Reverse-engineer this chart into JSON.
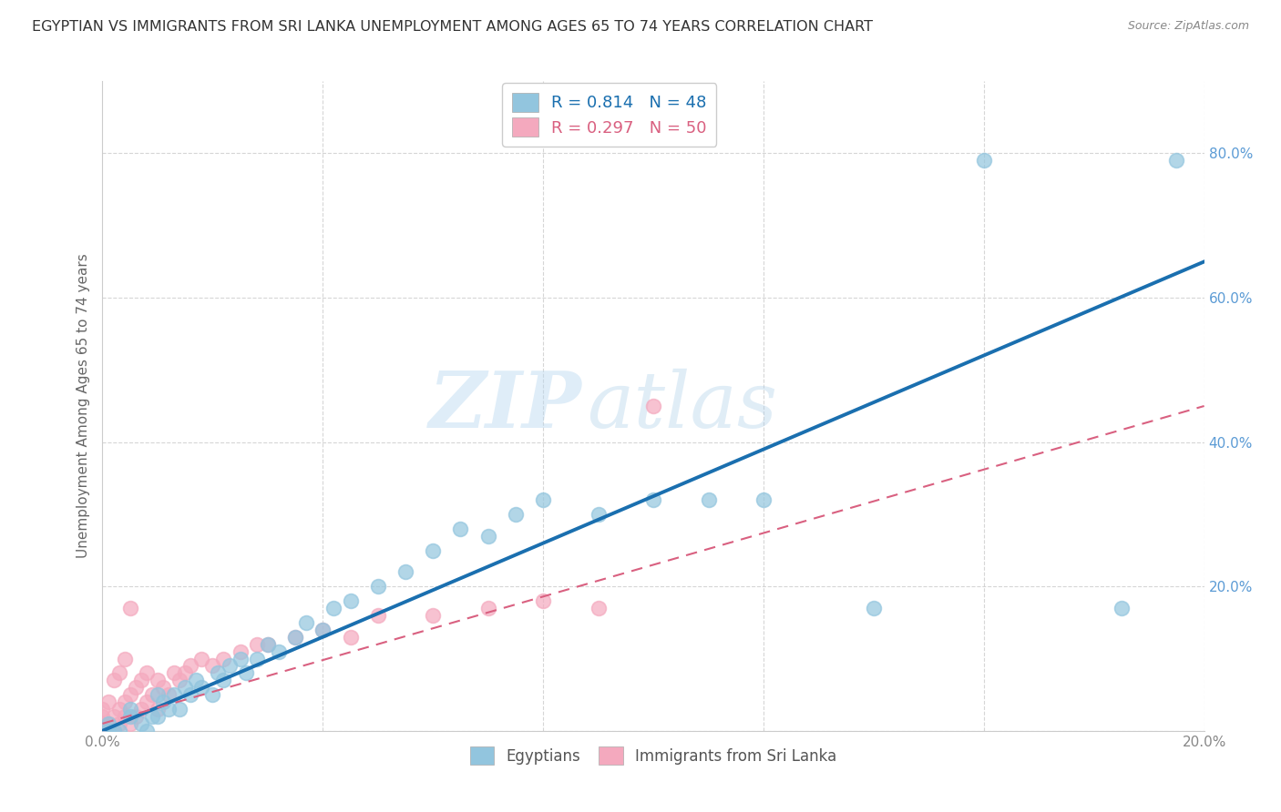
{
  "title": "EGYPTIAN VS IMMIGRANTS FROM SRI LANKA UNEMPLOYMENT AMONG AGES 65 TO 74 YEARS CORRELATION CHART",
  "source": "Source: ZipAtlas.com",
  "ylabel": "Unemployment Among Ages 65 to 74 years",
  "xlim": [
    0.0,
    0.2
  ],
  "ylim": [
    0.0,
    0.9
  ],
  "x_ticks": [
    0.0,
    0.04,
    0.08,
    0.12,
    0.16,
    0.2
  ],
  "y_ticks_right": [
    0.0,
    0.2,
    0.4,
    0.6,
    0.8
  ],
  "y_tick_labels_right": [
    "",
    "20.0%",
    "40.0%",
    "60.0%",
    "80.0%"
  ],
  "egyptian_color": "#92c5de",
  "srilanka_color": "#f4a9be",
  "egyptian_line_color": "#1a6faf",
  "srilanka_line_color": "#d96080",
  "R_egyptian": 0.814,
  "N_egyptian": 48,
  "R_srilanka": 0.297,
  "N_srilanka": 50,
  "legend_label_1": "Egyptians",
  "legend_label_2": "Immigrants from Sri Lanka",
  "watermark_zip": "ZIP",
  "watermark_atlas": "atlas",
  "background_color": "#ffffff",
  "grid_color": "#cccccc",
  "egyptian_x": [
    0.001,
    0.001,
    0.002,
    0.003,
    0.005,
    0.005,
    0.007,
    0.008,
    0.009,
    0.01,
    0.01,
    0.011,
    0.012,
    0.013,
    0.014,
    0.015,
    0.016,
    0.017,
    0.018,
    0.02,
    0.021,
    0.022,
    0.023,
    0.025,
    0.026,
    0.028,
    0.03,
    0.032,
    0.035,
    0.037,
    0.04,
    0.042,
    0.045,
    0.05,
    0.055,
    0.06,
    0.065,
    0.07,
    0.075,
    0.08,
    0.09,
    0.1,
    0.11,
    0.12,
    0.14,
    0.16,
    0.185,
    0.195
  ],
  "egyptian_y": [
    0.0,
    0.01,
    0.0,
    0.0,
    0.02,
    0.03,
    0.01,
    0.0,
    0.02,
    0.02,
    0.05,
    0.04,
    0.03,
    0.05,
    0.03,
    0.06,
    0.05,
    0.07,
    0.06,
    0.05,
    0.08,
    0.07,
    0.09,
    0.1,
    0.08,
    0.1,
    0.12,
    0.11,
    0.13,
    0.15,
    0.14,
    0.17,
    0.18,
    0.2,
    0.22,
    0.25,
    0.28,
    0.27,
    0.3,
    0.32,
    0.3,
    0.32,
    0.32,
    0.32,
    0.17,
    0.79,
    0.17,
    0.79
  ],
  "srilanka_x": [
    0.0,
    0.0,
    0.0,
    0.0,
    0.0,
    0.001,
    0.001,
    0.001,
    0.002,
    0.002,
    0.002,
    0.003,
    0.003,
    0.003,
    0.004,
    0.004,
    0.004,
    0.005,
    0.005,
    0.005,
    0.006,
    0.006,
    0.007,
    0.007,
    0.008,
    0.008,
    0.009,
    0.01,
    0.01,
    0.011,
    0.012,
    0.013,
    0.014,
    0.015,
    0.016,
    0.018,
    0.02,
    0.022,
    0.025,
    0.028,
    0.03,
    0.035,
    0.04,
    0.045,
    0.05,
    0.06,
    0.07,
    0.08,
    0.09,
    0.1
  ],
  "srilanka_y": [
    0.0,
    0.0,
    0.01,
    0.02,
    0.03,
    0.0,
    0.01,
    0.04,
    0.0,
    0.02,
    0.07,
    0.01,
    0.03,
    0.08,
    0.02,
    0.04,
    0.1,
    0.01,
    0.05,
    0.17,
    0.02,
    0.06,
    0.03,
    0.07,
    0.04,
    0.08,
    0.05,
    0.03,
    0.07,
    0.06,
    0.05,
    0.08,
    0.07,
    0.08,
    0.09,
    0.1,
    0.09,
    0.1,
    0.11,
    0.12,
    0.12,
    0.13,
    0.14,
    0.13,
    0.16,
    0.16,
    0.17,
    0.18,
    0.17,
    0.45
  ]
}
